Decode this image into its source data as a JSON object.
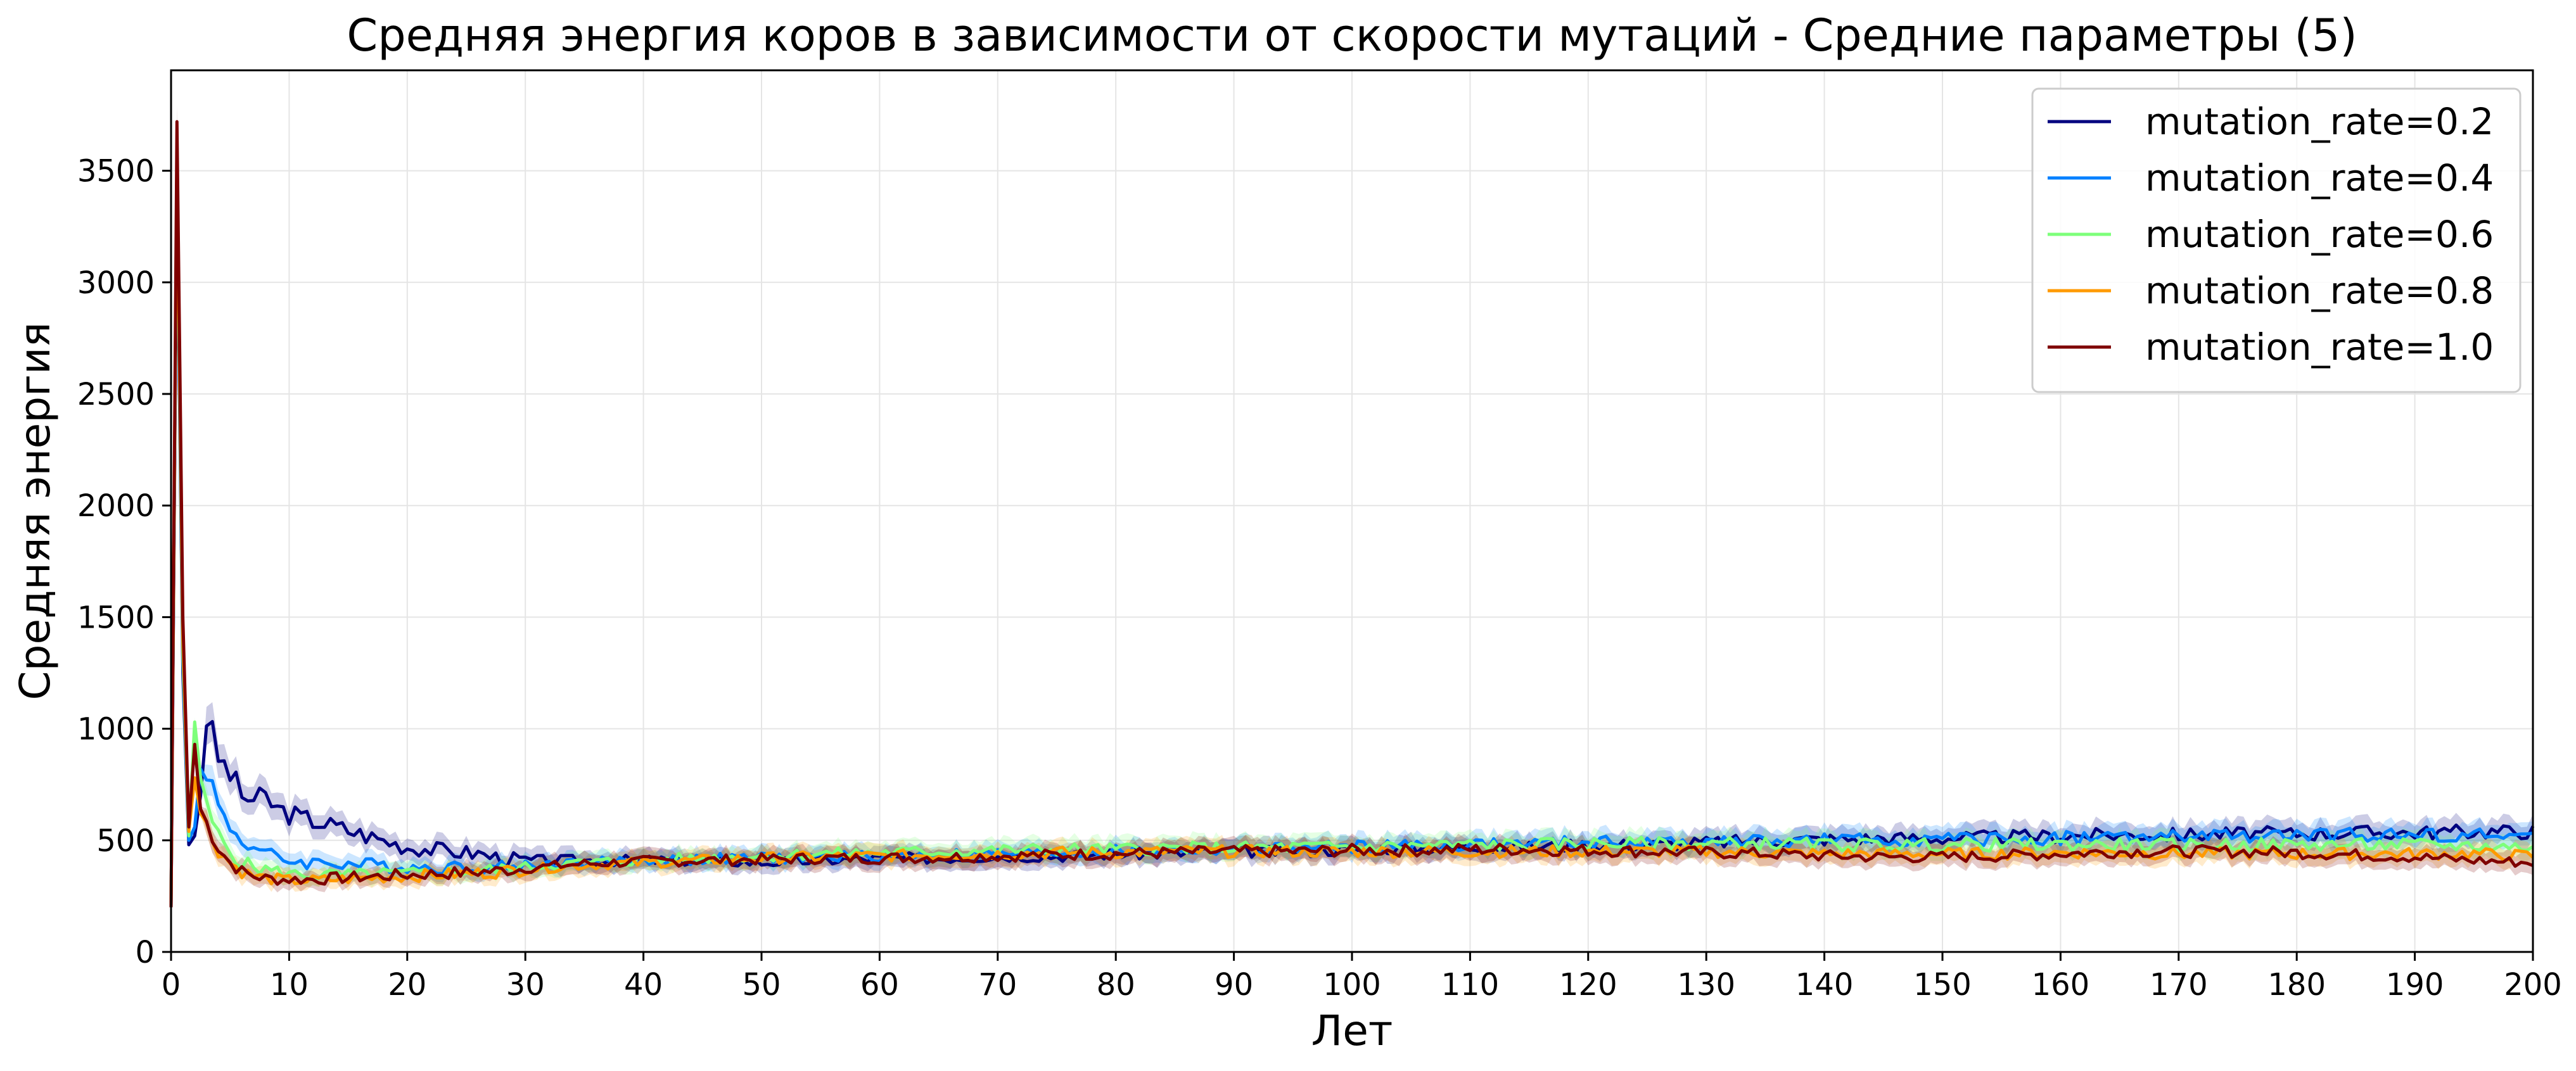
{
  "chart_data": {
    "type": "line",
    "title": "Средняя энергия коров в зависимости от скорости мутаций - Средние параметры (5)",
    "xlabel": "Лет",
    "ylabel": "Средняя энергия",
    "xlim": [
      0,
      200
    ],
    "ylim": [
      0,
      3950
    ],
    "x_ticks": [
      0,
      10,
      20,
      30,
      40,
      50,
      60,
      70,
      80,
      90,
      100,
      110,
      120,
      130,
      140,
      150,
      160,
      170,
      180,
      190,
      200
    ],
    "y_ticks": [
      0,
      500,
      1000,
      1500,
      2000,
      2500,
      3000,
      3500
    ],
    "grid": true,
    "legend_position": "top-right",
    "confidence_band": true,
    "series": [
      {
        "name": "mutation_rate=0.2",
        "color": "#00007f",
        "points": [
          [
            0,
            200
          ],
          [
            0.5,
            3400
          ],
          [
            1,
            1250
          ],
          [
            1.5,
            480
          ],
          [
            2,
            520
          ],
          [
            2.5,
            700
          ],
          [
            3,
            1060
          ],
          [
            4,
            870
          ],
          [
            5,
            800
          ],
          [
            6,
            700
          ],
          [
            7,
            680
          ],
          [
            8,
            690
          ],
          [
            9,
            640
          ],
          [
            10,
            620
          ],
          [
            11,
            600
          ],
          [
            12,
            590
          ],
          [
            14,
            560
          ],
          [
            16,
            530
          ],
          [
            18,
            500
          ],
          [
            20,
            470
          ],
          [
            22,
            460
          ],
          [
            24,
            450
          ],
          [
            26,
            440
          ],
          [
            28,
            420
          ],
          [
            30,
            410
          ],
          [
            35,
            410
          ],
          [
            40,
            410
          ],
          [
            45,
            410
          ],
          [
            50,
            400
          ],
          [
            55,
            410
          ],
          [
            60,
            420
          ],
          [
            65,
            420
          ],
          [
            70,
            430
          ],
          [
            75,
            430
          ],
          [
            80,
            440
          ],
          [
            85,
            440
          ],
          [
            90,
            450
          ],
          [
            95,
            450
          ],
          [
            100,
            460
          ],
          [
            105,
            465
          ],
          [
            110,
            470
          ],
          [
            115,
            470
          ],
          [
            120,
            480
          ],
          [
            125,
            480
          ],
          [
            130,
            490
          ],
          [
            135,
            500
          ],
          [
            140,
            505
          ],
          [
            145,
            510
          ],
          [
            150,
            510
          ],
          [
            155,
            515
          ],
          [
            160,
            520
          ],
          [
            165,
            525
          ],
          [
            170,
            525
          ],
          [
            175,
            530
          ],
          [
            180,
            530
          ],
          [
            185,
            535
          ],
          [
            190,
            535
          ],
          [
            195,
            540
          ],
          [
            200,
            540
          ]
        ]
      },
      {
        "name": "mutation_rate=0.4",
        "color": "#0080ff",
        "points": [
          [
            0,
            200
          ],
          [
            0.5,
            3500
          ],
          [
            1,
            1300
          ],
          [
            1.5,
            500
          ],
          [
            2,
            560
          ],
          [
            2.5,
            820
          ],
          [
            3,
            830
          ],
          [
            4,
            650
          ],
          [
            5,
            560
          ],
          [
            6,
            500
          ],
          [
            7,
            470
          ],
          [
            8,
            440
          ],
          [
            9,
            420
          ],
          [
            10,
            410
          ],
          [
            12,
            400
          ],
          [
            14,
            400
          ],
          [
            16,
            390
          ],
          [
            18,
            390
          ],
          [
            20,
            380
          ],
          [
            22,
            380
          ],
          [
            25,
            380
          ],
          [
            28,
            380
          ],
          [
            30,
            390
          ],
          [
            35,
            400
          ],
          [
            40,
            410
          ],
          [
            45,
            415
          ],
          [
            50,
            420
          ],
          [
            55,
            425
          ],
          [
            60,
            430
          ],
          [
            65,
            435
          ],
          [
            70,
            440
          ],
          [
            75,
            445
          ],
          [
            80,
            450
          ],
          [
            85,
            455
          ],
          [
            90,
            460
          ],
          [
            95,
            465
          ],
          [
            100,
            470
          ],
          [
            105,
            475
          ],
          [
            110,
            480
          ],
          [
            115,
            485
          ],
          [
            120,
            490
          ],
          [
            125,
            490
          ],
          [
            130,
            495
          ],
          [
            135,
            495
          ],
          [
            140,
            500
          ],
          [
            145,
            500
          ],
          [
            150,
            505
          ],
          [
            155,
            505
          ],
          [
            160,
            510
          ],
          [
            165,
            515
          ],
          [
            170,
            515
          ],
          [
            175,
            520
          ],
          [
            180,
            520
          ],
          [
            185,
            525
          ],
          [
            190,
            525
          ],
          [
            195,
            525
          ],
          [
            200,
            520
          ]
        ]
      },
      {
        "name": "mutation_rate=0.6",
        "color": "#7dff7a",
        "points": [
          [
            0,
            200
          ],
          [
            0.5,
            3550
          ],
          [
            1,
            1350
          ],
          [
            1.5,
            520
          ],
          [
            2,
            1030
          ],
          [
            2.5,
            780
          ],
          [
            3,
            640
          ],
          [
            4,
            520
          ],
          [
            5,
            450
          ],
          [
            6,
            400
          ],
          [
            7,
            380
          ],
          [
            8,
            370
          ],
          [
            9,
            360
          ],
          [
            10,
            350
          ],
          [
            12,
            345
          ],
          [
            14,
            345
          ],
          [
            16,
            345
          ],
          [
            18,
            350
          ],
          [
            20,
            350
          ],
          [
            22,
            355
          ],
          [
            25,
            360
          ],
          [
            28,
            370
          ],
          [
            30,
            380
          ],
          [
            35,
            400
          ],
          [
            40,
            410
          ],
          [
            45,
            420
          ],
          [
            50,
            430
          ],
          [
            55,
            440
          ],
          [
            60,
            445
          ],
          [
            65,
            450
          ],
          [
            70,
            455
          ],
          [
            75,
            460
          ],
          [
            80,
            460
          ],
          [
            85,
            465
          ],
          [
            90,
            465
          ],
          [
            95,
            470
          ],
          [
            100,
            470
          ],
          [
            105,
            475
          ],
          [
            110,
            480
          ],
          [
            115,
            480
          ],
          [
            120,
            485
          ],
          [
            125,
            485
          ],
          [
            130,
            485
          ],
          [
            135,
            485
          ],
          [
            140,
            480
          ],
          [
            145,
            480
          ],
          [
            150,
            480
          ],
          [
            155,
            480
          ],
          [
            160,
            480
          ],
          [
            165,
            480
          ],
          [
            170,
            480
          ],
          [
            175,
            480
          ],
          [
            180,
            480
          ],
          [
            185,
            480
          ],
          [
            190,
            480
          ],
          [
            195,
            475
          ],
          [
            200,
            470
          ]
        ]
      },
      {
        "name": "mutation_rate=0.8",
        "color": "#ff9a00",
        "points": [
          [
            0,
            200
          ],
          [
            0.5,
            3600
          ],
          [
            1,
            1400
          ],
          [
            1.5,
            540
          ],
          [
            2,
            780
          ],
          [
            2.5,
            620
          ],
          [
            3,
            560
          ],
          [
            4,
            460
          ],
          [
            5,
            400
          ],
          [
            6,
            360
          ],
          [
            7,
            340
          ],
          [
            8,
            330
          ],
          [
            9,
            325
          ],
          [
            10,
            320
          ],
          [
            12,
            320
          ],
          [
            14,
            325
          ],
          [
            16,
            330
          ],
          [
            18,
            335
          ],
          [
            20,
            340
          ],
          [
            22,
            345
          ],
          [
            25,
            350
          ],
          [
            28,
            360
          ],
          [
            30,
            370
          ],
          [
            35,
            390
          ],
          [
            40,
            400
          ],
          [
            45,
            410
          ],
          [
            50,
            420
          ],
          [
            55,
            425
          ],
          [
            60,
            430
          ],
          [
            65,
            435
          ],
          [
            70,
            440
          ],
          [
            75,
            445
          ],
          [
            80,
            445
          ],
          [
            85,
            450
          ],
          [
            90,
            450
          ],
          [
            95,
            450
          ],
          [
            100,
            450
          ],
          [
            105,
            450
          ],
          [
            110,
            450
          ],
          [
            115,
            450
          ],
          [
            120,
            450
          ],
          [
            125,
            450
          ],
          [
            130,
            450
          ],
          [
            135,
            445
          ],
          [
            140,
            440
          ],
          [
            145,
            440
          ],
          [
            150,
            440
          ],
          [
            155,
            440
          ],
          [
            160,
            445
          ],
          [
            165,
            445
          ],
          [
            170,
            440
          ],
          [
            175,
            440
          ],
          [
            180,
            440
          ],
          [
            185,
            440
          ],
          [
            190,
            440
          ],
          [
            195,
            440
          ],
          [
            200,
            430
          ]
        ]
      },
      {
        "name": "mutation_rate=1.0",
        "color": "#7f0000",
        "points": [
          [
            0,
            200
          ],
          [
            0.5,
            3720
          ],
          [
            1,
            1500
          ],
          [
            1.5,
            560
          ],
          [
            2,
            930
          ],
          [
            2.5,
            640
          ],
          [
            3,
            580
          ],
          [
            4,
            470
          ],
          [
            5,
            400
          ],
          [
            6,
            360
          ],
          [
            7,
            340
          ],
          [
            8,
            330
          ],
          [
            9,
            325
          ],
          [
            10,
            325
          ],
          [
            12,
            325
          ],
          [
            14,
            330
          ],
          [
            16,
            335
          ],
          [
            18,
            340
          ],
          [
            20,
            345
          ],
          [
            22,
            350
          ],
          [
            25,
            355
          ],
          [
            28,
            365
          ],
          [
            30,
            375
          ],
          [
            35,
            395
          ],
          [
            40,
            405
          ],
          [
            45,
            410
          ],
          [
            50,
            415
          ],
          [
            55,
            420
          ],
          [
            60,
            420
          ],
          [
            65,
            425
          ],
          [
            70,
            430
          ],
          [
            75,
            435
          ],
          [
            80,
            440
          ],
          [
            85,
            445
          ],
          [
            90,
            450
          ],
          [
            95,
            450
          ],
          [
            100,
            455
          ],
          [
            105,
            455
          ],
          [
            110,
            460
          ],
          [
            115,
            460
          ],
          [
            120,
            455
          ],
          [
            125,
            450
          ],
          [
            130,
            445
          ],
          [
            135,
            440
          ],
          [
            140,
            430
          ],
          [
            145,
            425
          ],
          [
            150,
            425
          ],
          [
            155,
            430
          ],
          [
            160,
            440
          ],
          [
            165,
            450
          ],
          [
            170,
            450
          ],
          [
            175,
            450
          ],
          [
            180,
            445
          ],
          [
            185,
            435
          ],
          [
            190,
            425
          ],
          [
            195,
            410
          ],
          [
            200,
            400
          ]
        ]
      }
    ]
  }
}
